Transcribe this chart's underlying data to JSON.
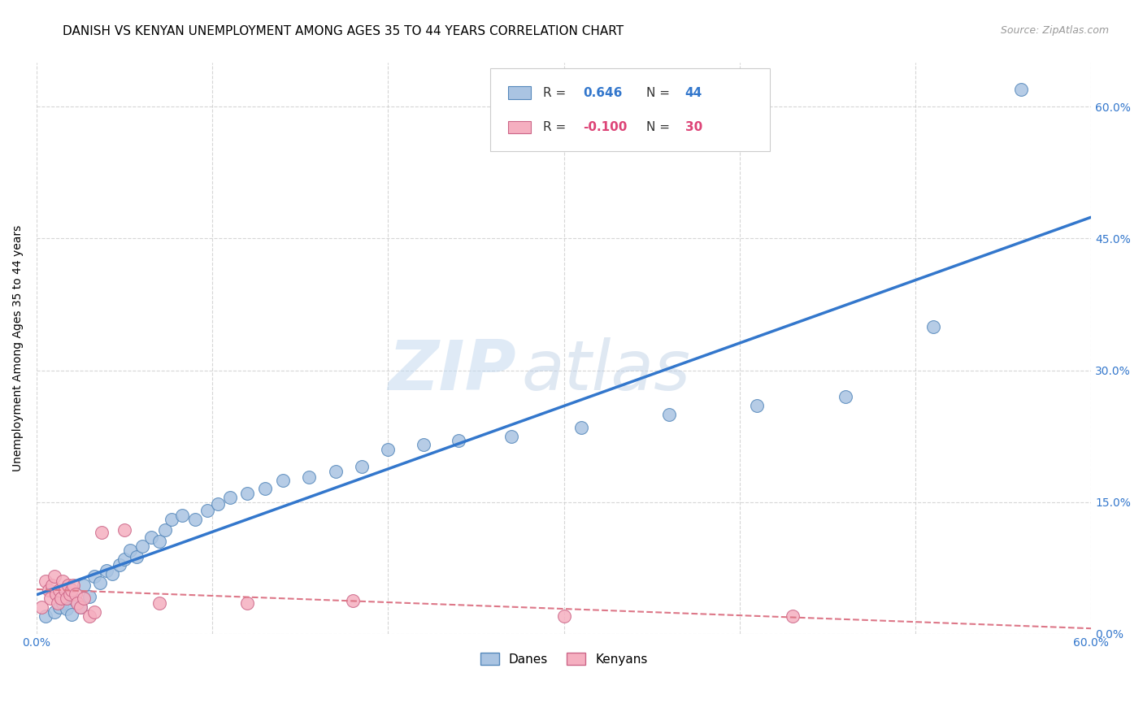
{
  "title": "DANISH VS KENYAN UNEMPLOYMENT AMONG AGES 35 TO 44 YEARS CORRELATION CHART",
  "source": "Source: ZipAtlas.com",
  "ylabel": "Unemployment Among Ages 35 to 44 years",
  "xlim": [
    0.0,
    0.6
  ],
  "ylim": [
    0.0,
    0.65
  ],
  "xticks": [
    0.0,
    0.1,
    0.2,
    0.3,
    0.4,
    0.5,
    0.6
  ],
  "xticklabels": [
    "0.0%",
    "",
    "",
    "",
    "",
    "",
    "60.0%"
  ],
  "ytick_positions": [
    0.0,
    0.15,
    0.3,
    0.45,
    0.6
  ],
  "yticklabels_right": [
    "0.0%",
    "15.0%",
    "30.0%",
    "45.0%",
    "60.0%"
  ],
  "danes_color": "#aac4e2",
  "kenyans_color": "#f5afc0",
  "danes_edge_color": "#5588bb",
  "kenyans_edge_color": "#cc6688",
  "danes_line_color": "#3377cc",
  "kenyans_line_color": "#dd7788",
  "legend_r_danes": "0.646",
  "legend_n_danes": "44",
  "legend_r_kenyans": "-0.100",
  "legend_n_kenyans": "30",
  "watermark_zip": "ZIP",
  "watermark_atlas": "atlas",
  "grid_color": "#cccccc",
  "background_color": "#ffffff",
  "title_fontsize": 11,
  "axis_label_fontsize": 10,
  "tick_fontsize": 10,
  "danes_x": [
    0.005,
    0.01,
    0.013,
    0.015,
    0.017,
    0.02,
    0.022,
    0.025,
    0.027,
    0.03,
    0.033,
    0.036,
    0.04,
    0.043,
    0.047,
    0.05,
    0.053,
    0.057,
    0.06,
    0.065,
    0.07,
    0.073,
    0.077,
    0.083,
    0.09,
    0.097,
    0.103,
    0.11,
    0.12,
    0.13,
    0.14,
    0.155,
    0.17,
    0.185,
    0.2,
    0.22,
    0.24,
    0.27,
    0.31,
    0.36,
    0.41,
    0.46,
    0.51,
    0.56
  ],
  "danes_y": [
    0.02,
    0.025,
    0.03,
    0.035,
    0.028,
    0.022,
    0.038,
    0.03,
    0.055,
    0.042,
    0.065,
    0.058,
    0.072,
    0.068,
    0.078,
    0.085,
    0.095,
    0.088,
    0.1,
    0.11,
    0.105,
    0.118,
    0.13,
    0.135,
    0.13,
    0.14,
    0.148,
    0.155,
    0.16,
    0.165,
    0.175,
    0.178,
    0.185,
    0.19,
    0.21,
    0.215,
    0.22,
    0.225,
    0.235,
    0.25,
    0.26,
    0.27,
    0.35,
    0.62
  ],
  "kenyans_x": [
    0.003,
    0.005,
    0.007,
    0.008,
    0.009,
    0.01,
    0.011,
    0.012,
    0.013,
    0.014,
    0.015,
    0.016,
    0.017,
    0.018,
    0.019,
    0.02,
    0.021,
    0.022,
    0.023,
    0.025,
    0.027,
    0.03,
    0.033,
    0.037,
    0.05,
    0.07,
    0.12,
    0.18,
    0.3,
    0.43
  ],
  "kenyans_y": [
    0.03,
    0.06,
    0.05,
    0.04,
    0.055,
    0.065,
    0.045,
    0.035,
    0.05,
    0.04,
    0.06,
    0.05,
    0.04,
    0.055,
    0.045,
    0.05,
    0.055,
    0.045,
    0.035,
    0.03,
    0.04,
    0.02,
    0.025,
    0.115,
    0.118,
    0.035,
    0.035,
    0.038,
    0.02,
    0.02
  ]
}
